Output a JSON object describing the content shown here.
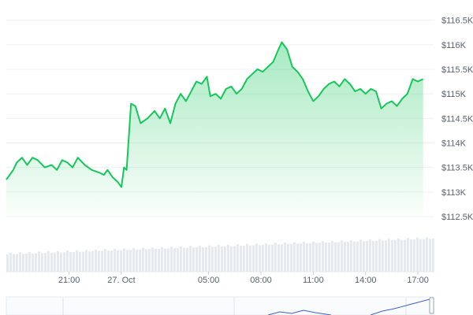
{
  "chart_data": {
    "type": "area",
    "title": "",
    "xlabel": "",
    "ylabel": "",
    "colors": {
      "line": "#16c75a",
      "fill_top": "#16c75a",
      "grid": "#eef0f3",
      "volume": "#e6e9ee",
      "navigator": "#3b63c9"
    },
    "y_ticks": [
      "$116.5K",
      "$116K",
      "$115.5K",
      "$115K",
      "$114.5K",
      "$114K",
      "$113.5K",
      "$113K",
      "$112.5K"
    ],
    "y_tick_values": [
      116500,
      116000,
      115500,
      115000,
      114500,
      114000,
      113500,
      113000,
      112500
    ],
    "ylim": [
      112500,
      116750
    ],
    "x_ticks": [
      "21:00",
      "27. Oct",
      "05:00",
      "08:00",
      "11:00",
      "14:00",
      "17:00"
    ],
    "x_tick_hours": [
      21,
      24,
      29,
      32,
      35,
      38,
      41
    ],
    "xlim_hours": [
      17.4,
      41.9
    ],
    "x_unit": "hours from 26 Oct 00:00",
    "series": [
      {
        "points": [
          [
            17.4,
            113250
          ],
          [
            17.8,
            113450
          ],
          [
            18.0,
            113600
          ],
          [
            18.3,
            113700
          ],
          [
            18.6,
            113550
          ],
          [
            18.9,
            113700
          ],
          [
            19.2,
            113650
          ],
          [
            19.6,
            113500
          ],
          [
            20.0,
            113550
          ],
          [
            20.3,
            113450
          ],
          [
            20.6,
            113650
          ],
          [
            20.9,
            113600
          ],
          [
            21.2,
            113500
          ],
          [
            21.5,
            113700
          ],
          [
            21.9,
            113550
          ],
          [
            22.3,
            113450
          ],
          [
            22.7,
            113400
          ],
          [
            23.0,
            113350
          ],
          [
            23.2,
            113450
          ],
          [
            23.5,
            113300
          ],
          [
            23.8,
            113200
          ],
          [
            24.0,
            113100
          ],
          [
            24.15,
            113500
          ],
          [
            24.3,
            113450
          ],
          [
            24.55,
            114800
          ],
          [
            24.8,
            114750
          ],
          [
            25.1,
            114400
          ],
          [
            25.5,
            114500
          ],
          [
            25.9,
            114650
          ],
          [
            26.2,
            114500
          ],
          [
            26.5,
            114700
          ],
          [
            26.8,
            114400
          ],
          [
            27.1,
            114800
          ],
          [
            27.4,
            115000
          ],
          [
            27.7,
            114850
          ],
          [
            28.0,
            115050
          ],
          [
            28.3,
            115250
          ],
          [
            28.6,
            115200
          ],
          [
            28.9,
            115350
          ],
          [
            29.1,
            114950
          ],
          [
            29.4,
            115000
          ],
          [
            29.7,
            114900
          ],
          [
            30.0,
            115100
          ],
          [
            30.3,
            115150
          ],
          [
            30.6,
            115000
          ],
          [
            30.9,
            115100
          ],
          [
            31.2,
            115300
          ],
          [
            31.5,
            115400
          ],
          [
            31.8,
            115500
          ],
          [
            32.1,
            115450
          ],
          [
            32.4,
            115550
          ],
          [
            32.7,
            115650
          ],
          [
            33.0,
            115900
          ],
          [
            33.2,
            116050
          ],
          [
            33.5,
            115900
          ],
          [
            33.8,
            115550
          ],
          [
            34.1,
            115450
          ],
          [
            34.4,
            115300
          ],
          [
            34.7,
            115050
          ],
          [
            35.0,
            114850
          ],
          [
            35.3,
            114950
          ],
          [
            35.6,
            115100
          ],
          [
            35.9,
            115200
          ],
          [
            36.2,
            115250
          ],
          [
            36.5,
            115150
          ],
          [
            36.8,
            115300
          ],
          [
            37.1,
            115200
          ],
          [
            37.4,
            115050
          ],
          [
            37.7,
            115100
          ],
          [
            38.0,
            115000
          ],
          [
            38.3,
            115100
          ],
          [
            38.6,
            115050
          ],
          [
            38.9,
            114700
          ],
          [
            39.2,
            114800
          ],
          [
            39.5,
            114850
          ],
          [
            39.8,
            114750
          ],
          [
            40.1,
            114900
          ],
          [
            40.4,
            115000
          ],
          [
            40.7,
            115300
          ],
          [
            41.0,
            115250
          ],
          [
            41.3,
            115300
          ]
        ]
      }
    ]
  }
}
